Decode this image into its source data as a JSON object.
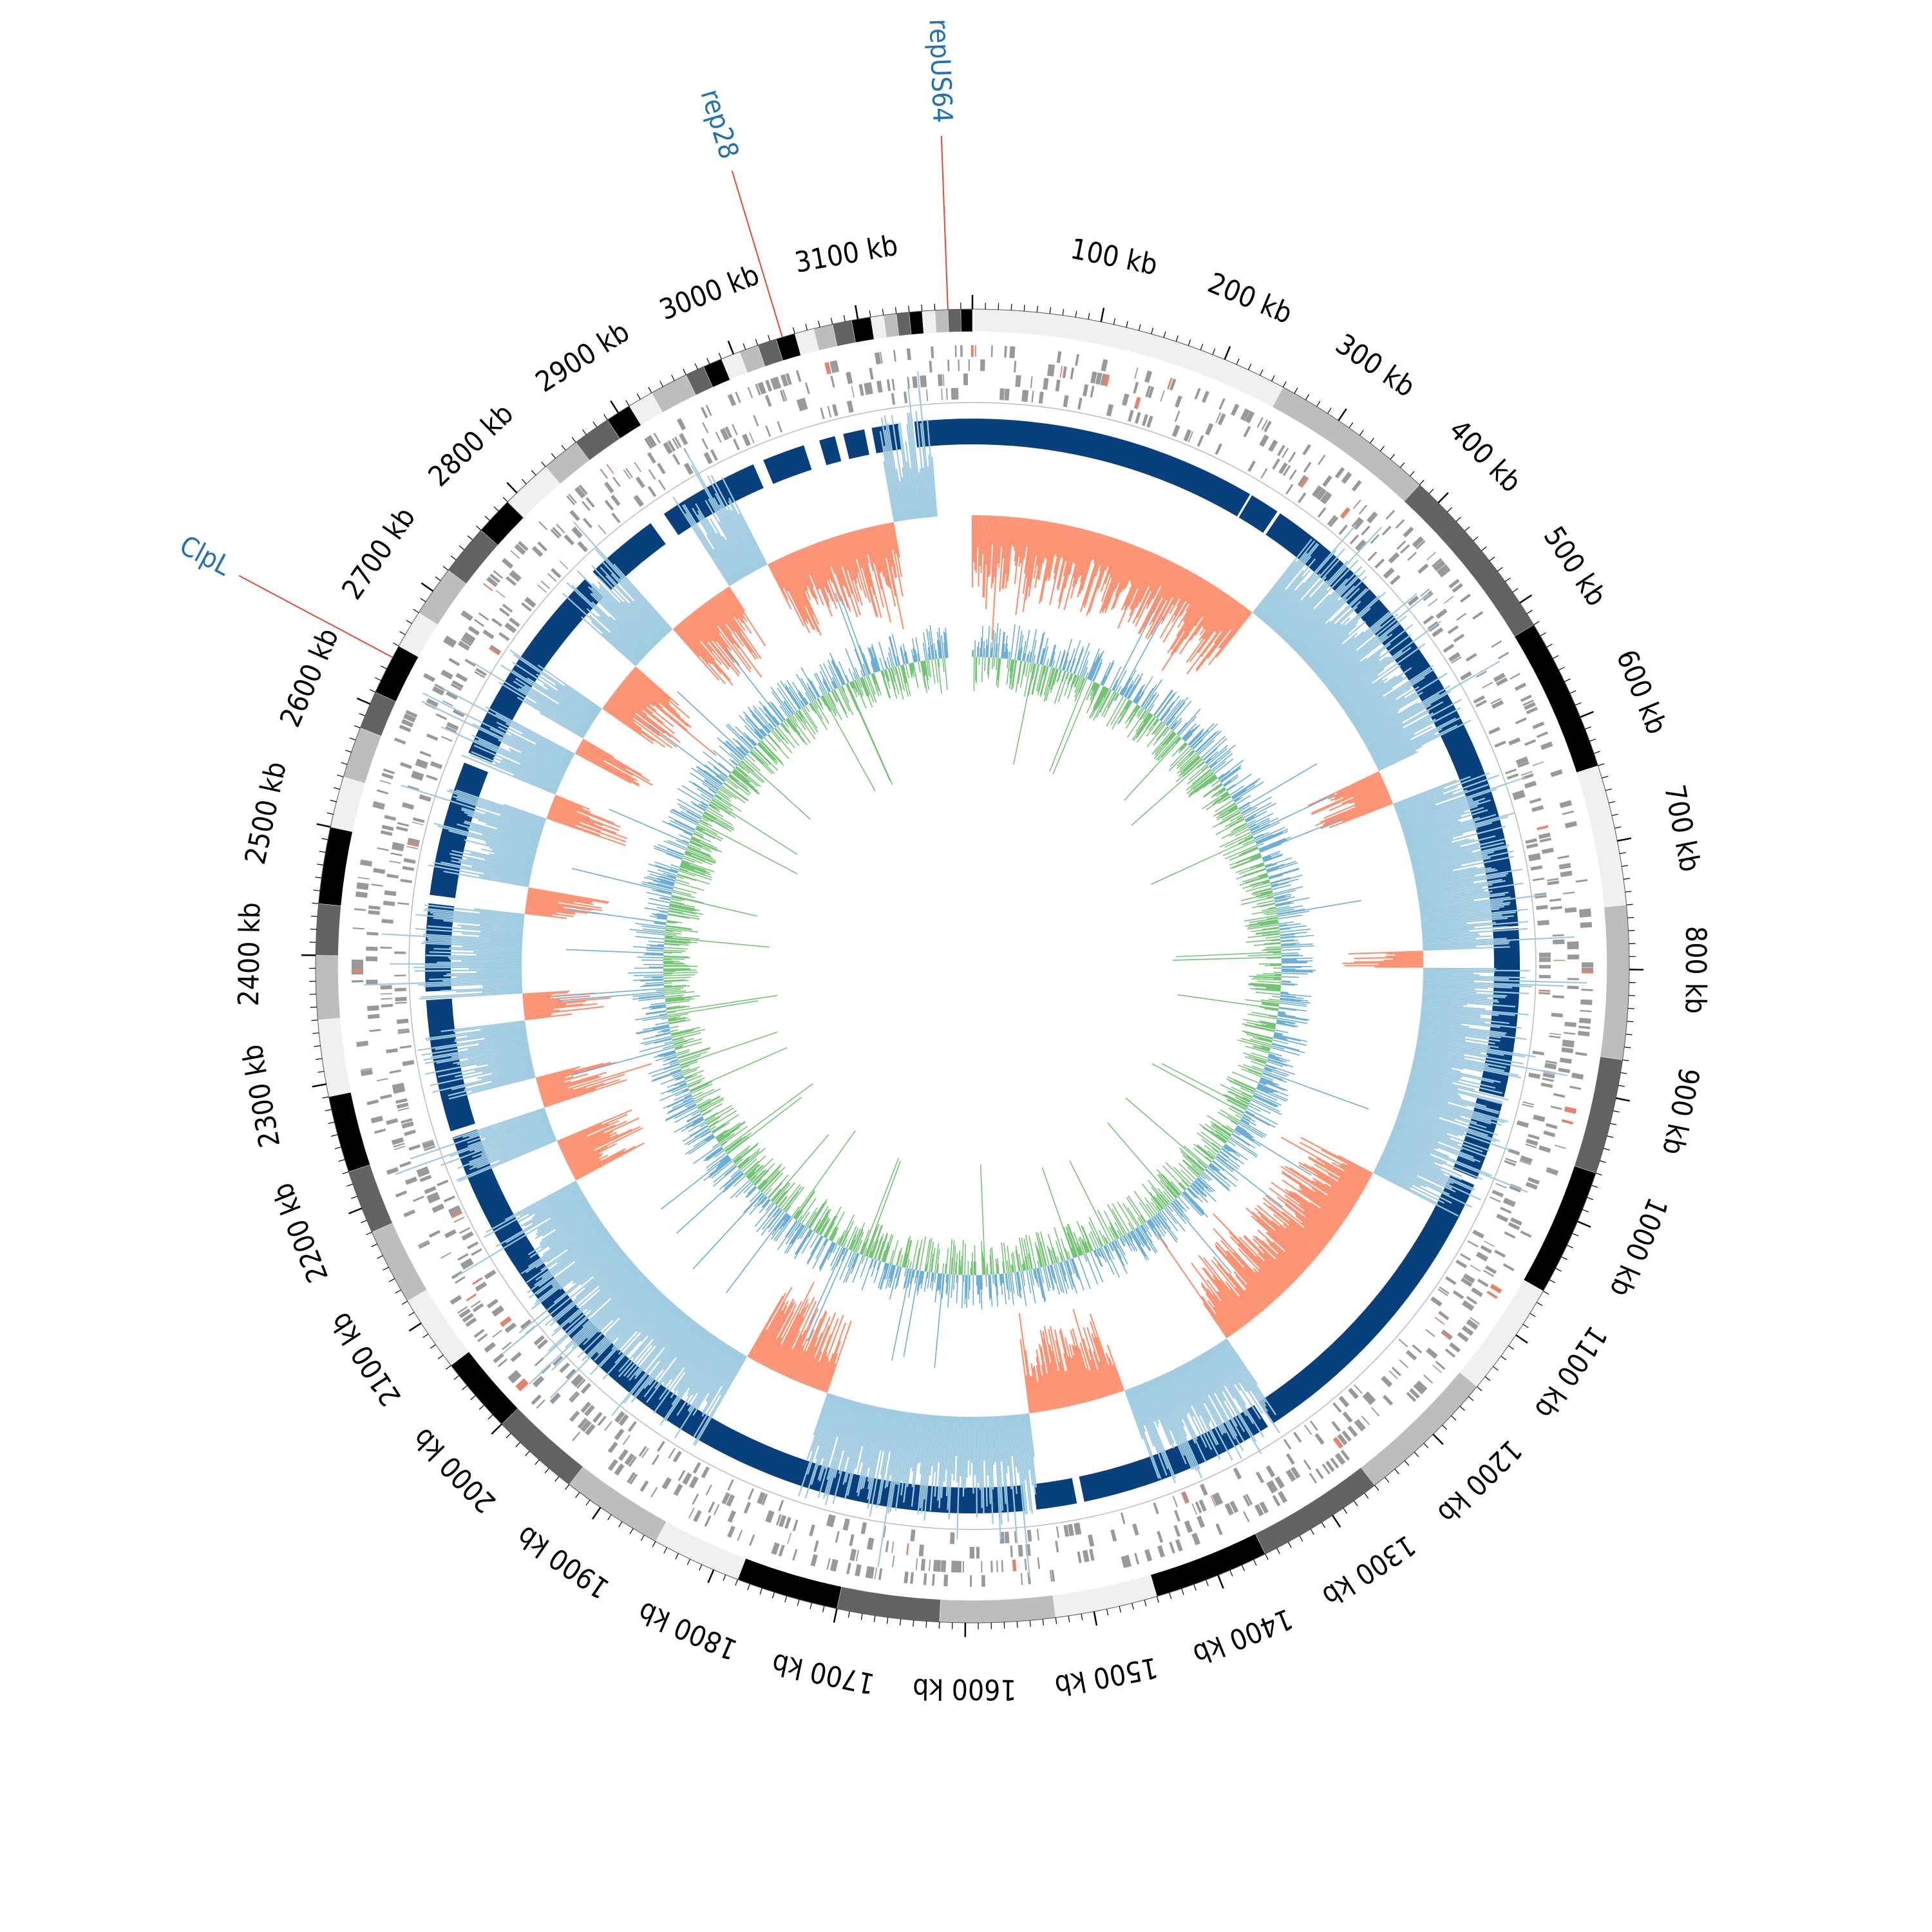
{
  "genome": {
    "length_kb": 3189,
    "tick_major_step_kb": 100,
    "tick_minor_step_kb": 10,
    "tick_unit": "kb",
    "tick_labels": [
      "100 kb",
      "200 kb",
      "300 kb",
      "400 kb",
      "500 kb",
      "600 kb",
      "700 kb",
      "800 kb",
      "900 kb",
      "1000 kb",
      "1100 kb",
      "1200 kb",
      "1300 kb",
      "1400 kb",
      "1500 kb",
      "1600 kb",
      "1700 kb",
      "1800 kb",
      "1900 kb",
      "2000 kb",
      "2100 kb",
      "2200 kb",
      "2300 kb",
      "2400 kb",
      "2500 kb",
      "2600 kb",
      "2700 kb",
      "2800 kb",
      "2900 kb",
      "3000 kb",
      "3100 kb"
    ]
  },
  "annotations": [
    {
      "label": "repUS64",
      "position_kb": 3170
    },
    {
      "label": "rep28",
      "position_kb": 3040
    },
    {
      "label": "ClpL",
      "position_kb": 2640
    }
  ],
  "tracks": {
    "contigs": {
      "shades": [
        "#f0f0f0",
        "#bdbdbd",
        "#636363",
        "#000000",
        "#f0f0f0",
        "#bdbdbd",
        "#636363",
        "#000000"
      ],
      "boundaries_kb": [
        0,
        250,
        380,
        520,
        640,
        750,
        870,
        960,
        1060,
        1150,
        1260,
        1360,
        1450,
        1530,
        1620,
        1700,
        1780,
        1850,
        1930,
        2000,
        2060,
        2120,
        2180,
        2230,
        2290,
        2350,
        2400,
        2440,
        2500,
        2540,
        2580,
        2610,
        2650,
        2680,
        2720,
        2760,
        2790,
        2830,
        2860,
        2890,
        2910,
        2930,
        2960,
        2975,
        2990,
        3005,
        3020,
        3035,
        3050,
        3065,
        3080,
        3095,
        3110,
        3120,
        3130,
        3140,
        3150,
        3160,
        3170,
        3180,
        3189
      ]
    },
    "cds_track": {
      "color": "#999999",
      "highlight_color": "#e8836b"
    },
    "identity_ring": {
      "color": "#08407e",
      "alt_color": "#1f78b4",
      "gaps_kb": [
        [
          3120,
          3135
        ],
        [
          3088,
          3095
        ],
        [
          3060,
          3068
        ],
        [
          3030,
          3045
        ],
        [
          2980,
          2990
        ],
        [
          2870,
          2885
        ],
        [
          2790,
          2800
        ],
        [
          2585,
          2595
        ],
        [
          2450,
          2458
        ],
        [
          2360,
          2368
        ],
        [
          2230,
          2236
        ],
        [
          1535,
          1545
        ],
        [
          1490,
          1497
        ],
        [
          1300,
          1305
        ],
        [
          1000,
          1006
        ],
        [
          920,
          926
        ],
        [
          760,
          762
        ],
        [
          300,
          303
        ],
        [
          270,
          272
        ]
      ]
    },
    "coverage_ring": {
      "positive_color": "#9ecae1",
      "negative_color": "#fc9272"
    },
    "gc_ring": {
      "color_a": "#74c476",
      "color_b": "#6baed6"
    }
  },
  "colors": {
    "annotation_text": "#2171b5",
    "annotation_line": "#e34a33",
    "ticks": "#000000"
  }
}
